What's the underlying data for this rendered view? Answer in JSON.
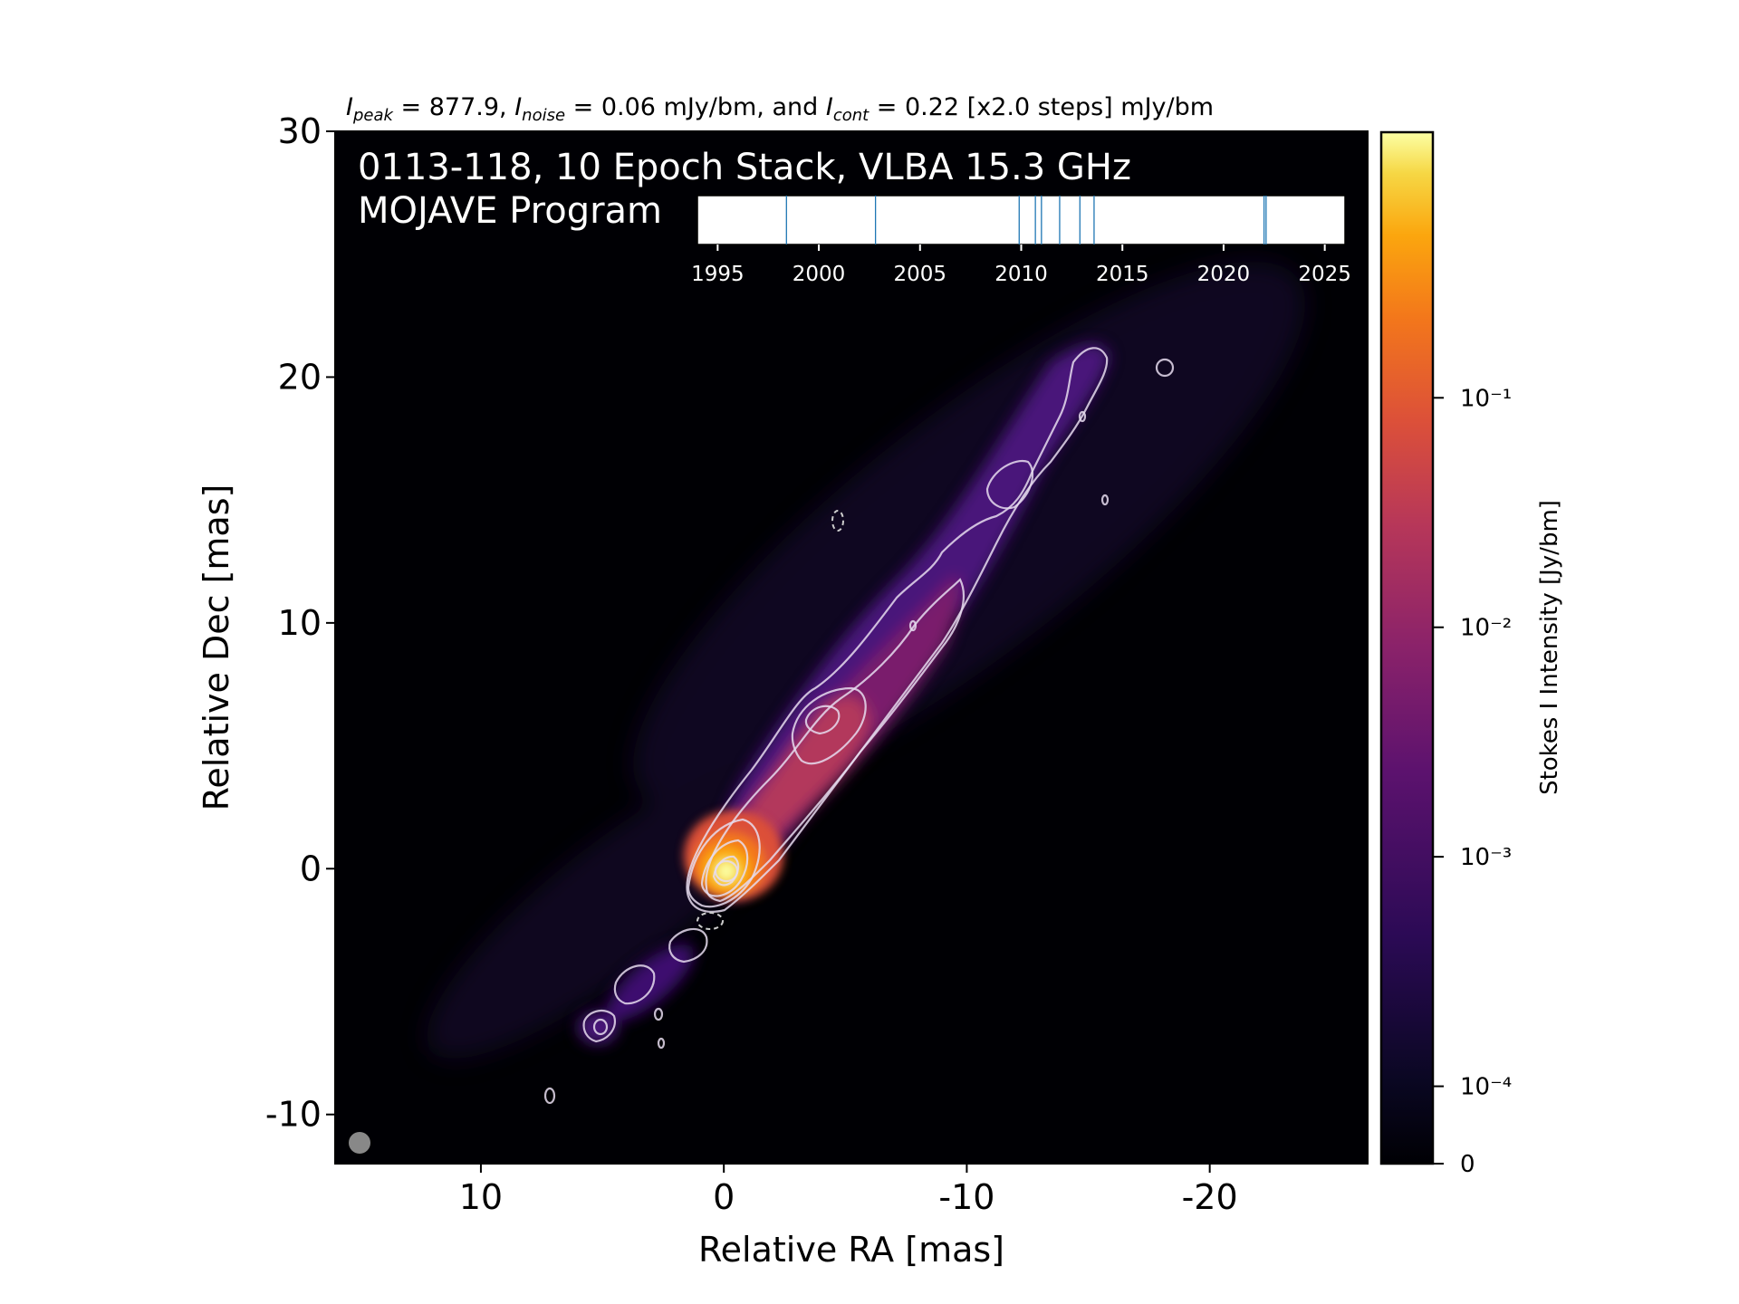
{
  "header": {
    "peak_label": "I",
    "peak_sub": "peak",
    "peak_value": " = 877.9, ",
    "noise_label": "I",
    "noise_sub": "noise",
    "noise_value": " = 0.06 mJy/bm, and ",
    "cont_label": "I",
    "cont_sub": "cont",
    "cont_value": " = 0.22 [x2.0 steps] mJy/bm"
  },
  "overlay": {
    "line1": "0113-118, 10 Epoch Stack, VLBA 15.3 GHz",
    "line2": "MOJAVE Program"
  },
  "chart_data": {
    "type": "heatmap",
    "xlabel": "Relative RA [mas]",
    "ylabel": "Relative Dec [mas]",
    "xlim": [
      16.0,
      -26.5
    ],
    "ylim": [
      -12.0,
      30.0
    ],
    "xticks": [
      10,
      0,
      -10,
      -20
    ],
    "xtick_labels": [
      "10",
      "0",
      "-10",
      "-20"
    ],
    "yticks": [
      -10,
      0,
      10,
      20,
      30
    ],
    "ytick_labels": [
      "-10",
      "0",
      "10",
      "20",
      "30"
    ],
    "colormap": "inferno",
    "colorbar": {
      "label": "Stokes I Intensity [Jy/bm]",
      "scale": "log",
      "ticks": [
        {
          "value": 0,
          "label": "0"
        },
        {
          "value": 0.0001,
          "label": "10⁻⁴"
        },
        {
          "value": 0.001,
          "label": "10⁻³"
        },
        {
          "value": 0.01,
          "label": "10⁻²"
        },
        {
          "value": 0.1,
          "label": "10⁻¹"
        }
      ]
    },
    "jet": {
      "core_position": [
        0,
        0
      ],
      "position_angle_deg": -38,
      "knots": [
        {
          "x": 0,
          "y": 0,
          "intensity": 0.8779
        },
        {
          "x": -1.5,
          "y": 2.5,
          "intensity": 0.012
        },
        {
          "x": -3.7,
          "y": 6.4,
          "intensity": 0.012
        },
        {
          "x": -7.5,
          "y": 11.0,
          "intensity": 0.0012
        },
        {
          "x": -10.8,
          "y": 16.0,
          "intensity": 0.0009
        },
        {
          "x": -14.5,
          "y": 20.5,
          "intensity": 0.0006
        },
        {
          "x": 5.0,
          "y": -6.5,
          "intensity": 0.0009
        },
        {
          "x": 3.0,
          "y": -3.5,
          "intensity": 0.0005
        }
      ]
    },
    "epoch_inset": {
      "xlim": [
        1994.0,
        2026.0
      ],
      "xticks": [
        1995,
        2000,
        2005,
        2010,
        2015,
        2020,
        2025
      ],
      "xtick_labels": [
        "1995",
        "2000",
        "2005",
        "2010",
        "2015",
        "2020",
        "2025"
      ],
      "epochs": [
        1998.4,
        2002.8,
        2009.9,
        2010.7,
        2011.0,
        2011.9,
        2012.9,
        2013.6,
        2022.0,
        2022.1
      ],
      "line_color": "#1f77b4"
    },
    "beam": {
      "color": "#888888"
    }
  }
}
